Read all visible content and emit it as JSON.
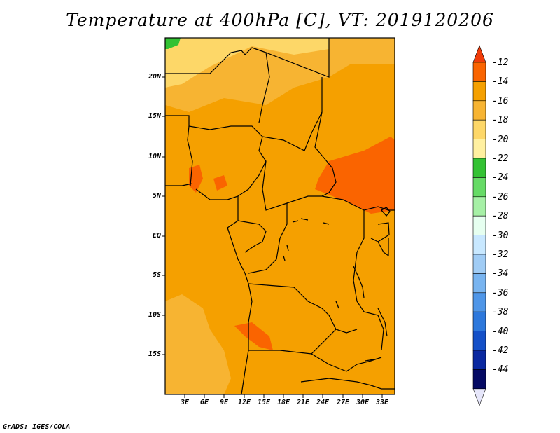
{
  "title": "Temperature at 400hPa [C], VT: 2019120206",
  "credit": "GrADS: IGES/COLA",
  "lat_labels": [
    "20N",
    "15N",
    "10N",
    "5N",
    "EQ",
    "5S",
    "10S",
    "15S"
  ],
  "lon_labels": [
    "3E",
    "6E",
    "9E",
    "12E",
    "15E",
    "18E",
    "21E",
    "24E",
    "27E",
    "30E",
    "33E"
  ],
  "colorbar": {
    "labels": [
      "-12",
      "-14",
      "-16",
      "-18",
      "-20",
      "-22",
      "-24",
      "-26",
      "-28",
      "-30",
      "-32",
      "-34",
      "-36",
      "-38",
      "-40",
      "-42",
      "-44"
    ],
    "colors": [
      "#f03c0a",
      "#fa6400",
      "#f5a000",
      "#f7b432",
      "#fdd768",
      "#fff0a0",
      "#33c233",
      "#66db66",
      "#a6f0a6",
      "#e6fff0",
      "#c8e8ff",
      "#a0ccf5",
      "#78b4f0",
      "#4f96e8",
      "#2d78dc",
      "#1450c8",
      "#0a28a0",
      "#050a64",
      "#e6e6fa"
    ]
  },
  "map_colors": {
    "warm": "#fa6400",
    "main": "#f5a000",
    "mid": "#f7b432",
    "pale": "#fdd768",
    "green": "#33c233"
  }
}
